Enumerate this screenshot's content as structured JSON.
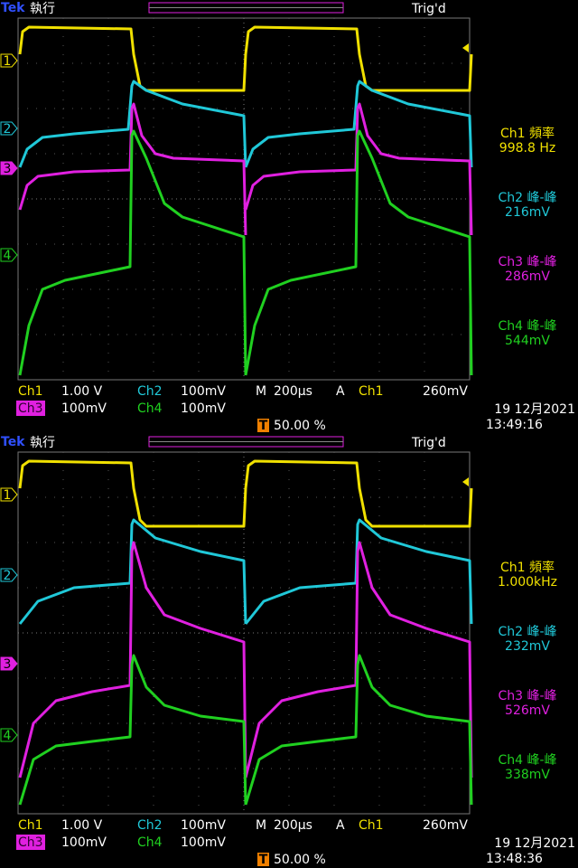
{
  "screens": [
    {
      "header": {
        "brand": "Tek",
        "status": "執行",
        "trigger_state": "Trig'd"
      },
      "markers": [
        "1",
        "2",
        "3",
        "4"
      ],
      "trigger_marker": "T",
      "measurements": [
        {
          "label": "Ch1 頻率",
          "value": "998.8 Hz"
        },
        {
          "label": "Ch2 峰-峰",
          "value": "216mV"
        },
        {
          "label": "Ch3 峰-峰",
          "value": "286mV"
        },
        {
          "label": "Ch4 峰-峰",
          "value": "544mV"
        }
      ],
      "settings": {
        "row1": [
          "Ch1",
          "1.00 V",
          "Ch2",
          "100mV",
          "M",
          "200µs",
          "A",
          "Ch1",
          "260mV"
        ],
        "row2": [
          "Ch3",
          "100mV",
          "Ch4",
          "100mV"
        ],
        "trigger_position": "50.00 %",
        "date": "19 12月2021",
        "time": "13:49:16"
      }
    },
    {
      "header": {
        "brand": "Tek",
        "status": "執行",
        "trigger_state": "Trig'd"
      },
      "markers": [
        "1",
        "2",
        "3",
        "4"
      ],
      "trigger_marker": "T",
      "measurements": [
        {
          "label": "Ch1 頻率",
          "value": "1.000kHz"
        },
        {
          "label": "Ch2 峰-峰",
          "value": "232mV"
        },
        {
          "label": "Ch3 峰-峰",
          "value": "526mV"
        },
        {
          "label": "Ch4 峰-峰",
          "value": "338mV"
        }
      ],
      "settings": {
        "row1": [
          "Ch1",
          "1.00 V",
          "Ch2",
          "100mV",
          "M",
          "200µs",
          "A",
          "Ch1",
          "260mV"
        ],
        "row2": [
          "Ch3",
          "100mV",
          "Ch4",
          "100mV"
        ],
        "trigger_position": "50.00 %",
        "date": "19 12月2021",
        "time": "13:48:36"
      }
    }
  ]
}
